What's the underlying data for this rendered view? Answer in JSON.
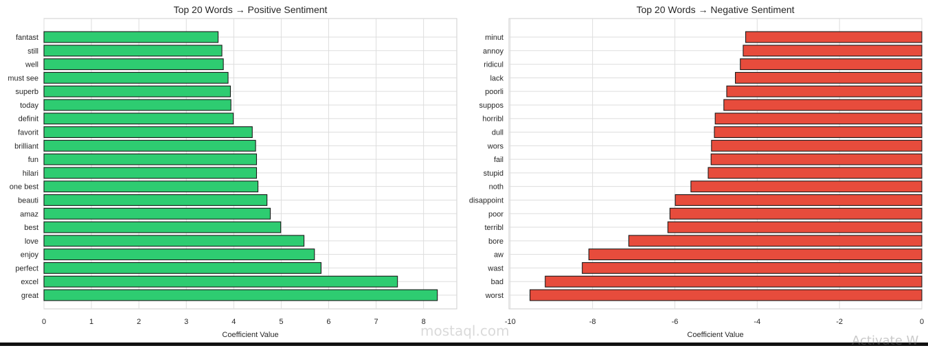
{
  "chart_data": [
    {
      "type": "bar",
      "orientation": "horizontal",
      "title": "Top 20 Words → Positive Sentiment",
      "xlabel": "Coefficient Value",
      "ylabel": "",
      "xlim": [
        0,
        8.7
      ],
      "xticks": [
        0,
        1,
        2,
        3,
        4,
        5,
        6,
        7,
        8
      ],
      "grid": true,
      "color": "#2ecc71",
      "edgecolor": "#1a1a1a",
      "categories": [
        "fantast",
        "still",
        "well",
        "must see",
        "superb",
        "today",
        "definit",
        "favorit",
        "brilliant",
        "fun",
        "hilari",
        "one best",
        "beauti",
        "amaz",
        "best",
        "love",
        "enjoy",
        "perfect",
        "excel",
        "great"
      ],
      "values": [
        3.67,
        3.75,
        3.78,
        3.88,
        3.93,
        3.94,
        3.99,
        4.39,
        4.46,
        4.48,
        4.48,
        4.51,
        4.7,
        4.77,
        4.99,
        5.48,
        5.7,
        5.84,
        7.45,
        8.29
      ]
    },
    {
      "type": "bar",
      "orientation": "horizontal",
      "title": "Top 20 Words → Negative Sentiment",
      "xlabel": "Coefficient Value",
      "ylabel": "",
      "xlim": [
        -10.03,
        0
      ],
      "xticks": [
        -10,
        -8,
        -6,
        -4,
        -2,
        0
      ],
      "grid": true,
      "color": "#e74c3c",
      "edgecolor": "#1a1a1a",
      "categories": [
        "minut",
        "annoy",
        "ridicul",
        "lack",
        "poorli",
        "suppos",
        "horribl",
        "dull",
        "wors",
        "fail",
        "stupid",
        "noth",
        "disappoint",
        "poor",
        "terribl",
        "bore",
        "aw",
        "wast",
        "bad",
        "worst"
      ],
      "values": [
        -4.28,
        -4.34,
        -4.41,
        -4.53,
        -4.74,
        -4.81,
        -5.02,
        -5.04,
        -5.11,
        -5.12,
        -5.19,
        -5.61,
        -5.99,
        -6.12,
        -6.17,
        -7.12,
        -8.09,
        -8.25,
        -9.15,
        -9.52
      ]
    }
  ],
  "watermark": {
    "logo": "mostaql.com",
    "os_notice": "Activate W"
  }
}
